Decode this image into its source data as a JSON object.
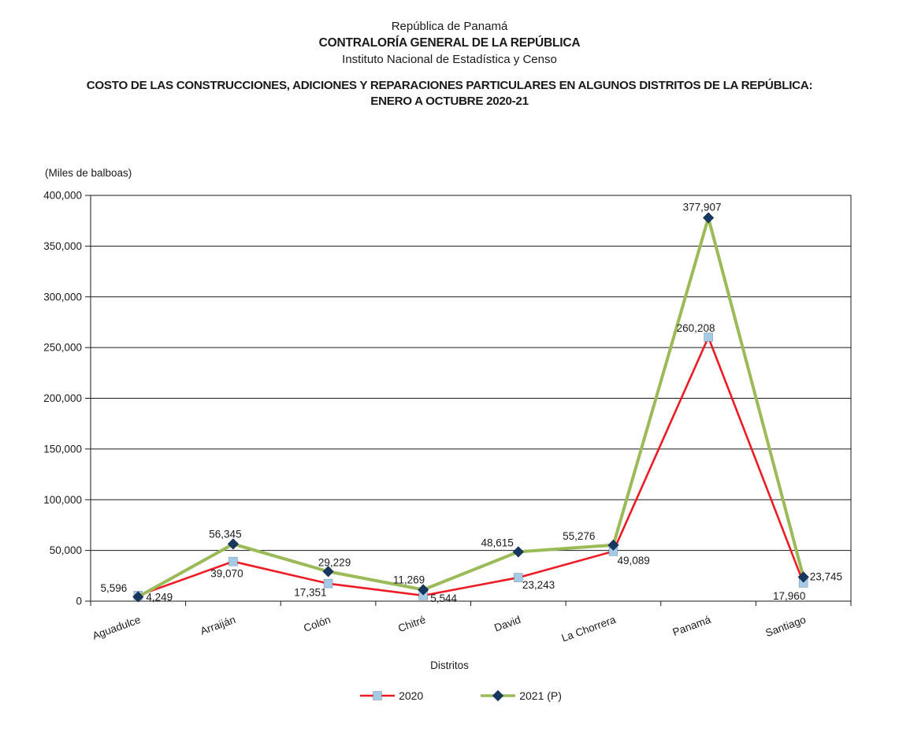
{
  "header": {
    "line1": "República de Panamá",
    "line2": "CONTRALORÍA GENERAL DE LA REPÚBLICA",
    "line3": "Instituto Nacional de Estadística y Censo"
  },
  "title": "COSTO DE LAS CONSTRUCCIONES, ADICIONES Y REPARACIONES PARTICULARES EN ALGUNOS DISTRITOS DE LA REPÚBLICA: ENERO A OCTUBRE 2020-21",
  "chart_data": {
    "type": "line",
    "title": "",
    "xlabel": "Distritos",
    "ylabel": "(Miles de balboas)",
    "ylim": [
      0,
      400000
    ],
    "ytick_step": 50000,
    "grid": true,
    "legend_position": "bottom",
    "data_labels": true,
    "categories": [
      "Aguadulce",
      "Arraiján",
      "Colón",
      "Chitré",
      "David",
      "La Chorrera",
      "Panamá",
      "Santiago"
    ],
    "series": [
      {
        "name": "2020",
        "line_color": "#ED1C24",
        "marker": "square",
        "marker_color": "#A6C9E4",
        "values": [
          5596,
          39070,
          17351,
          5544,
          23243,
          49089,
          260208,
          17960
        ]
      },
      {
        "name": "2021 (P)",
        "line_color": "#9BBB59",
        "marker": "diamond",
        "marker_color": "#17375E",
        "values": [
          4249,
          56345,
          29229,
          11269,
          48615,
          55276,
          377907,
          23745
        ]
      }
    ]
  }
}
